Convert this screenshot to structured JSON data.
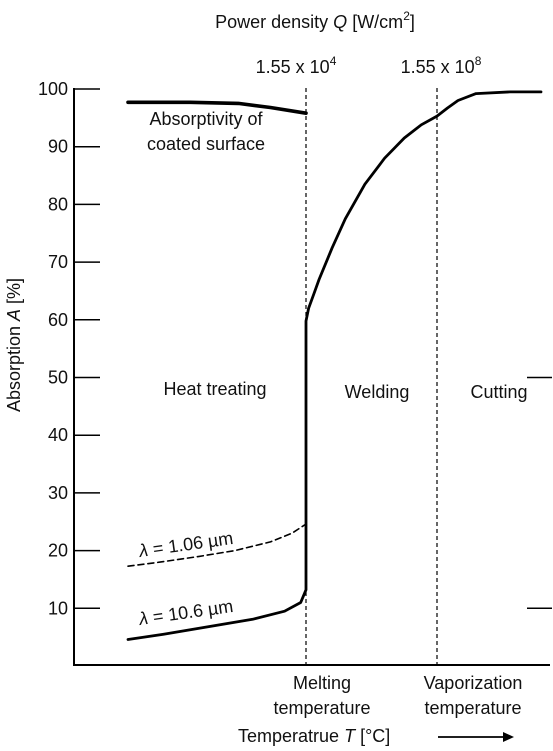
{
  "chart_data": {
    "type": "line",
    "title": "",
    "top_axis": {
      "label_prefix": "Power density ",
      "label_var": "Q",
      "label_unit_a": " [W/cm",
      "label_unit_exp": "2",
      "label_unit_b": "]",
      "marks": [
        {
          "base": "1.55 x 10",
          "exp": "4",
          "at": "melting"
        },
        {
          "base": "1.55 x 10",
          "exp": "8",
          "at": "vaporization"
        }
      ]
    },
    "ylabel_prefix": "Absorption ",
    "ylabel_var": "A",
    "ylabel_unit": " [%]",
    "ylim": [
      0,
      100
    ],
    "yticks": [
      10,
      20,
      30,
      40,
      50,
      60,
      70,
      80,
      90,
      100
    ],
    "x_axis": {
      "label_text": "Temperatrue ",
      "label_var": "T",
      "label_unit": " [°C]",
      "arrow": "→",
      "marks": [
        {
          "key": "melting",
          "line1": "Melting",
          "line2": "temperature"
        },
        {
          "key": "vaporization",
          "line1": "Vaporization",
          "line2": "temperature"
        }
      ]
    },
    "regions": [
      "Heat treating",
      "Welding",
      "Cutting"
    ],
    "annotations": {
      "coated_line1": "Absorptivity of",
      "coated_line2": "coated surface",
      "lambda1_sym": "λ",
      "lambda1_val": " = 1.06 µm",
      "lambda2_sym": "λ",
      "lambda2_val": " = 10.6 µm"
    },
    "series": [
      {
        "key": "coated",
        "style": "solid-thick",
        "x": [
          0.0,
          0.35,
          0.62,
          0.8,
          1.0
        ],
        "y": [
          97.7,
          97.7,
          97.5,
          96.8,
          95.8
        ]
      },
      {
        "key": "lambda_1_06",
        "style": "dashed",
        "x": [
          0.0,
          0.18,
          0.4,
          0.6,
          0.8,
          0.92,
          1.0
        ],
        "y": [
          17.3,
          18.0,
          19.0,
          20.0,
          21.5,
          23.0,
          24.6
        ]
      },
      {
        "key": "lambda_10_6",
        "style": "solid",
        "x": [
          0.0,
          0.2,
          0.45,
          0.7,
          0.88,
          0.97,
          1.0,
          1.0,
          1.0,
          1.0,
          1.02,
          1.06,
          1.1,
          1.2,
          1.3,
          1.45,
          1.6,
          1.75,
          1.88,
          2.0,
          2.08,
          2.16,
          2.2,
          2.3,
          2.5
        ],
        "y": [
          4.6,
          5.5,
          6.8,
          8.1,
          9.5,
          11.0,
          13.2,
          35.0,
          59.8,
          59.8,
          62.0,
          64.5,
          67.0,
          72.5,
          77.5,
          83.5,
          88.0,
          91.5,
          93.8,
          95.3,
          96.7,
          98.0,
          99.2,
          99.5,
          99.5
        ]
      }
    ]
  }
}
